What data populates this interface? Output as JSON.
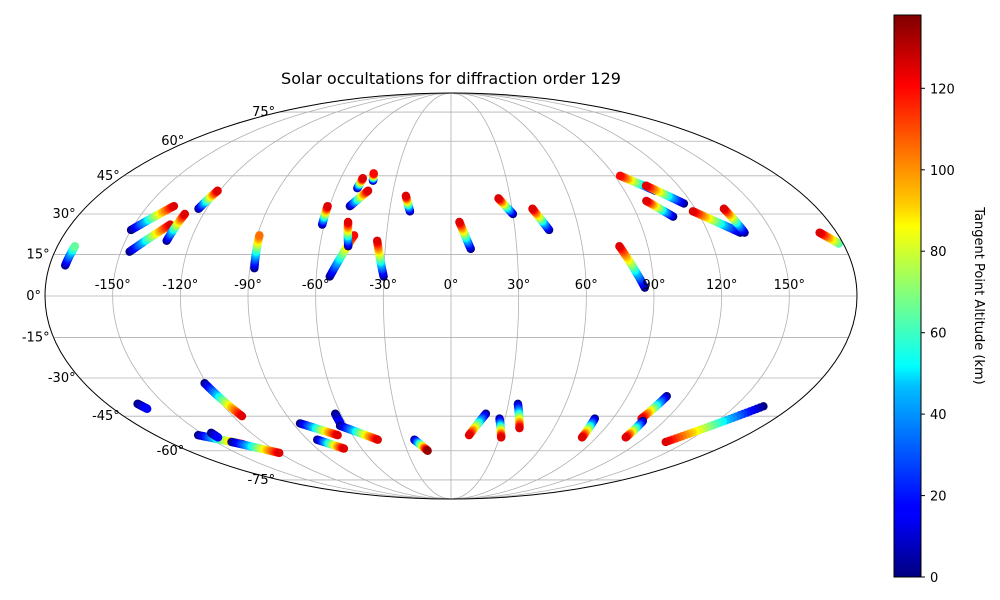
{
  "chart_data": {
    "type": "scatter",
    "projection": "mollweide",
    "title": "Solar occultations for diffraction order 129",
    "lon_ticks": [
      "-150°",
      "-120°",
      "-90°",
      "-60°",
      "-30°",
      "0°",
      "30°",
      "60°",
      "90°",
      "120°",
      "150°"
    ],
    "lat_ticks": [
      "75°",
      "60°",
      "45°",
      "30°",
      "15°",
      "0°",
      "-15°",
      "-30°",
      "-45°",
      "-60°",
      "-75°"
    ],
    "grid": true,
    "colorbar": {
      "label": "Tangent Point Altitude (km)",
      "ticks": [
        "0",
        "20",
        "40",
        "60",
        "80",
        "100",
        "120"
      ],
      "range": [
        0,
        138
      ],
      "colormap": "jet"
    },
    "tracks": [
      {
        "start": [
          -173,
          11
        ],
        "end": [
          -172,
          18
        ],
        "alt": [
          0,
          65
        ]
      },
      {
        "start": [
          -150,
          24
        ],
        "end": [
          -137,
          33
        ],
        "alt": [
          0,
          125
        ]
      },
      {
        "start": [
          -146,
          16
        ],
        "end": [
          -133,
          26
        ],
        "alt": [
          0,
          125
        ]
      },
      {
        "start": [
          -131,
          20
        ],
        "end": [
          -129,
          30
        ],
        "alt": [
          0,
          125
        ]
      },
      {
        "start": [
          -124,
          32
        ],
        "end": [
          -121,
          39
        ],
        "alt": [
          0,
          125
        ]
      },
      {
        "start": [
          -88,
          10
        ],
        "end": [
          -89,
          22
        ],
        "alt": [
          0,
          105
        ]
      },
      {
        "start": [
          -61,
          26
        ],
        "end": [
          -61,
          33
        ],
        "alt": [
          0,
          125
        ]
      },
      {
        "start": [
          -54,
          7
        ],
        "end": [
          -45,
          22
        ],
        "alt": [
          0,
          120
        ]
      },
      {
        "start": [
          -47,
          18
        ],
        "end": [
          -49,
          27
        ],
        "alt": [
          0,
          125
        ]
      },
      {
        "start": [
          -50,
          33
        ],
        "end": [
          -43,
          39
        ],
        "alt": [
          0,
          125
        ]
      },
      {
        "start": [
          -49,
          40
        ],
        "end": [
          -48,
          44
        ],
        "alt": [
          0,
          125
        ]
      },
      {
        "start": [
          -42,
          43
        ],
        "end": [
          -43,
          46
        ],
        "alt": [
          0,
          120
        ]
      },
      {
        "start": [
          -30,
          7
        ],
        "end": [
          -34,
          20
        ],
        "alt": [
          0,
          125
        ]
      },
      {
        "start": [
          -20,
          31
        ],
        "end": [
          -23,
          37
        ],
        "alt": [
          0,
          125
        ]
      },
      {
        "start": [
          9,
          17
        ],
        "end": [
          4,
          27
        ],
        "alt": [
          0,
          125
        ]
      },
      {
        "start": [
          30,
          30
        ],
        "end": [
          24,
          36
        ],
        "alt": [
          0,
          125
        ]
      },
      {
        "start": [
          46,
          24
        ],
        "end": [
          40,
          32
        ],
        "alt": [
          0,
          125
        ]
      },
      {
        "start": [
          86,
          3
        ],
        "end": [
          77,
          18
        ],
        "alt": [
          0,
          125
        ]
      },
      {
        "start": [
          106,
          39
        ],
        "end": [
          93,
          45
        ],
        "alt": [
          0,
          120
        ]
      },
      {
        "start": [
          116,
          34
        ],
        "end": [
          103,
          41
        ],
        "alt": [
          0,
          125
        ]
      },
      {
        "start": [
          107,
          29
        ],
        "end": [
          98,
          35
        ],
        "alt": [
          0,
          125
        ]
      },
      {
        "start": [
          135,
          23
        ],
        "end": [
          118,
          31
        ],
        "alt": [
          0,
          125
        ]
      },
      {
        "start": [
          137,
          23
        ],
        "end": [
          134,
          32
        ],
        "alt": [
          0,
          125
        ]
      },
      {
        "start": [
          178,
          19
        ],
        "end": [
          172,
          23
        ],
        "alt": [
          60,
          125
        ]
      },
      {
        "start": [
          -164,
          -40
        ],
        "end": [
          -162,
          -42
        ],
        "alt": [
          0,
          15
        ]
      },
      {
        "start": [
          -121,
          -32
        ],
        "end": [
          -115,
          -45
        ],
        "alt": [
          0,
          125
        ]
      },
      {
        "start": [
          -154,
          -53
        ],
        "end": [
          -135,
          -57
        ],
        "alt": [
          0,
          125
        ]
      },
      {
        "start": [
          -144,
          -52
        ],
        "end": [
          -144,
          -54
        ],
        "alt": [
          0,
          15
        ]
      },
      {
        "start": [
          -140,
          -56
        ],
        "end": [
          -120,
          -61
        ],
        "alt": [
          0,
          125
        ]
      },
      {
        "start": [
          -86,
          -48
        ],
        "end": [
          -69,
          -53
        ],
        "alt": [
          0,
          125
        ]
      },
      {
        "start": [
          -84,
          -55
        ],
        "end": [
          -72,
          -59
        ],
        "alt": [
          0,
          125
        ]
      },
      {
        "start": [
          -63,
          -44
        ],
        "end": [
          -63,
          -48
        ],
        "alt": [
          0,
          15
        ]
      },
      {
        "start": [
          -64,
          -49
        ],
        "end": [
          -46,
          -55
        ],
        "alt": [
          0,
          125
        ]
      },
      {
        "start": [
          -23,
          -55
        ],
        "end": [
          -16,
          -60
        ],
        "alt": [
          0,
          135
        ]
      },
      {
        "start": [
          19,
          -44
        ],
        "end": [
          11,
          -53
        ],
        "alt": [
          0,
          125
        ]
      },
      {
        "start": [
          27,
          -46
        ],
        "end": [
          31,
          -54
        ],
        "alt": [
          0,
          125
        ]
      },
      {
        "start": [
          35,
          -40
        ],
        "end": [
          40,
          -50
        ],
        "alt": [
          0,
          125
        ]
      },
      {
        "start": [
          80,
          -46
        ],
        "end": [
          81,
          -54
        ],
        "alt": [
          0,
          125
        ]
      },
      {
        "start": [
          110,
          -37
        ],
        "end": [
          106,
          -46
        ],
        "alt": [
          0,
          125
        ]
      },
      {
        "start": [
          108,
          -47
        ],
        "end": [
          108,
          -54
        ],
        "alt": [
          0,
          125
        ]
      },
      {
        "start": [
          165,
          -41
        ],
        "end": [
          137,
          -56
        ],
        "alt": [
          0,
          125
        ]
      }
    ]
  }
}
